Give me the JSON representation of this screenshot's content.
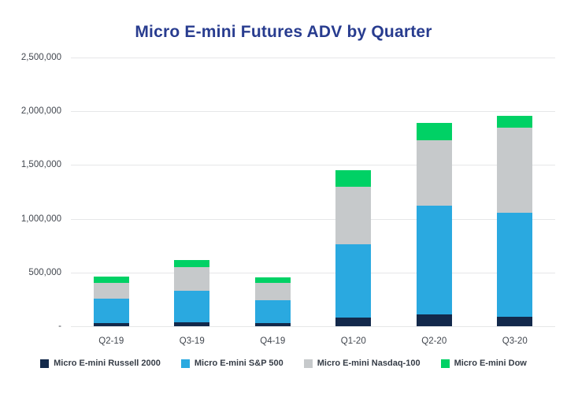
{
  "chart_data": {
    "type": "bar",
    "stacked": true,
    "title": "Micro E-mini Futures ADV by Quarter",
    "title_color": "#283C8F",
    "xlabel": "",
    "ylabel": "",
    "ylim": [
      0,
      2500000
    ],
    "grid": true,
    "grid_color": "#E6E7E8",
    "legend_position": "bottom",
    "categories": [
      "Q2-19",
      "Q3-19",
      "Q4-19",
      "Q1-20",
      "Q2-20",
      "Q3-20"
    ],
    "yticks": [
      {
        "value": 0,
        "label": "-"
      },
      {
        "value": 500000,
        "label": "500,000"
      },
      {
        "value": 1000000,
        "label": "1,000,000"
      },
      {
        "value": 1500000,
        "label": "1,500,000"
      },
      {
        "value": 2000000,
        "label": "2,000,000"
      },
      {
        "value": 2500000,
        "label": "2,500,000"
      }
    ],
    "series": [
      {
        "key": "russell-2000",
        "name": "Micro E-mini Russell 2000",
        "color": "#13294B",
        "values": [
          30000,
          35000,
          30000,
          78000,
          108000,
          90000
        ]
      },
      {
        "key": "sp-500",
        "name": "Micro E-mini S&P 500",
        "color": "#2AA9E0",
        "values": [
          225000,
          295000,
          215000,
          685000,
          1015000,
          965000
        ]
      },
      {
        "key": "nasdaq-100",
        "name": "Micro E-mini Nasdaq-100",
        "color": "#C6C9CB",
        "values": [
          150000,
          220000,
          160000,
          537000,
          610000,
          790000
        ]
      },
      {
        "key": "dow",
        "name": "Micro E-mini Dow",
        "color": "#00D165",
        "values": [
          55000,
          65000,
          50000,
          150000,
          157000,
          115000
        ]
      }
    ]
  }
}
